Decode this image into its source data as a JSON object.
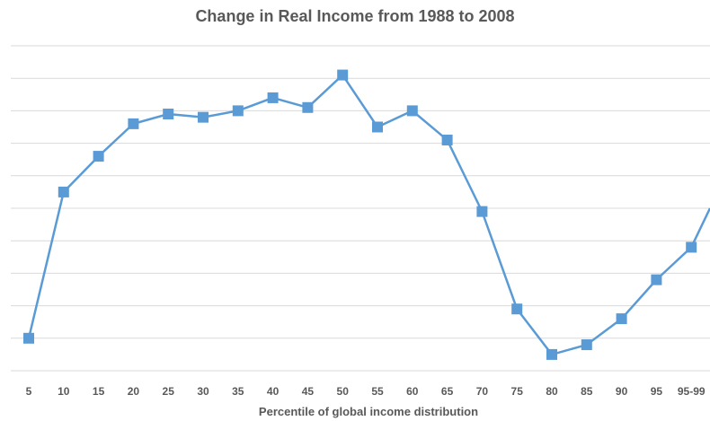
{
  "chart_data": {
    "type": "line",
    "title": "Change in Real Income from 1988 to 2008",
    "xlabel": "Percentile of global income distribution",
    "ylabel": "",
    "categories": [
      "5",
      "10",
      "15",
      "20",
      "25",
      "30",
      "35",
      "40",
      "45",
      "50",
      "55",
      "60",
      "65",
      "70",
      "75",
      "80",
      "85",
      "90",
      "95",
      "95-99"
    ],
    "series": [
      {
        "values": [
          1.0,
          5.5,
          6.6,
          7.6,
          7.9,
          7.8,
          8.0,
          8.4,
          8.1,
          9.1,
          7.5,
          8.0,
          7.1,
          4.9,
          1.9,
          0.5,
          0.8,
          1.6,
          2.8,
          3.8
        ]
      }
    ],
    "ylim": [
      0,
      10
    ],
    "grid": true,
    "legend": "none",
    "colors": {
      "line": "#5B9BD5",
      "grid": "#D9D9D9",
      "text": "#595959"
    }
  }
}
